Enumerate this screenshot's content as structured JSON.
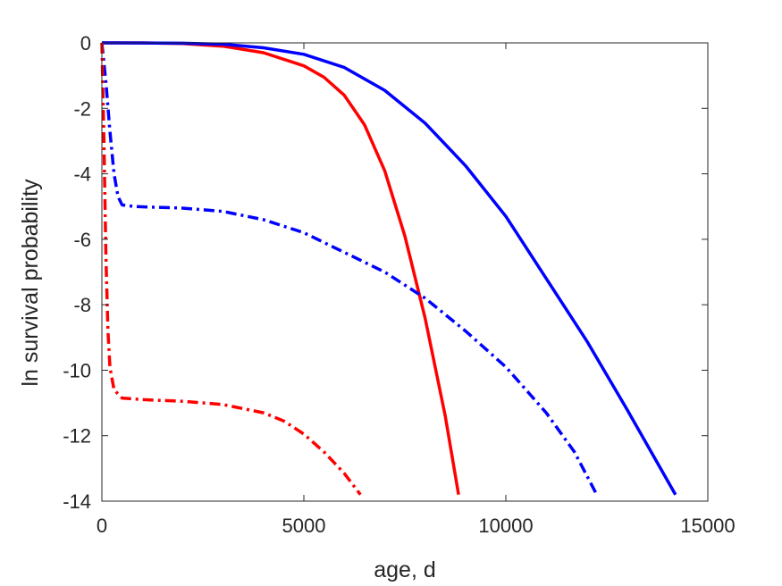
{
  "chart_data": {
    "type": "line",
    "title": "",
    "xlabel": "age, d",
    "ylabel": "ln survival probability",
    "xlim": [
      0,
      15000
    ],
    "ylim": [
      -14,
      0
    ],
    "xticks": [
      0,
      5000,
      10000,
      15000
    ],
    "xtick_labels": [
      "0",
      "5000",
      "10000",
      "15000"
    ],
    "yticks": [
      0,
      -2,
      -4,
      -6,
      -8,
      -10,
      -12,
      -14
    ],
    "ytick_labels": [
      "0",
      "-2",
      "-4",
      "-6",
      "-8",
      "-10",
      "-12",
      "-14"
    ],
    "grid": false,
    "legend": "none",
    "series": [
      {
        "color": "#ff0000",
        "style": "solid",
        "points": [
          [
            0,
            0
          ],
          [
            1000,
            0
          ],
          [
            2000,
            -0.02
          ],
          [
            3000,
            -0.1
          ],
          [
            4000,
            -0.3
          ],
          [
            5000,
            -0.7
          ],
          [
            5500,
            -1.05
          ],
          [
            6000,
            -1.6
          ],
          [
            6500,
            -2.5
          ],
          [
            7000,
            -3.9
          ],
          [
            7500,
            -5.9
          ],
          [
            8000,
            -8.4
          ],
          [
            8500,
            -11.4
          ],
          [
            8830,
            -13.8
          ]
        ]
      },
      {
        "color": "#0000ff",
        "style": "solid",
        "points": [
          [
            0,
            0
          ],
          [
            2000,
            -0.01
          ],
          [
            3000,
            -0.04
          ],
          [
            4000,
            -0.15
          ],
          [
            5000,
            -0.35
          ],
          [
            6000,
            -0.75
          ],
          [
            7000,
            -1.45
          ],
          [
            8000,
            -2.45
          ],
          [
            9000,
            -3.75
          ],
          [
            10000,
            -5.3
          ],
          [
            11000,
            -7.2
          ],
          [
            12000,
            -9.1
          ],
          [
            13000,
            -11.2
          ],
          [
            14200,
            -13.8
          ]
        ]
      },
      {
        "color": "#0000ff",
        "style": "dashdot",
        "points": [
          [
            0,
            0
          ],
          [
            100,
            -1.2
          ],
          [
            200,
            -2.7
          ],
          [
            300,
            -4.0
          ],
          [
            400,
            -4.7
          ],
          [
            500,
            -4.95
          ],
          [
            800,
            -5.0
          ],
          [
            2000,
            -5.05
          ],
          [
            3000,
            -5.15
          ],
          [
            4000,
            -5.4
          ],
          [
            5000,
            -5.8
          ],
          [
            6000,
            -6.4
          ],
          [
            7000,
            -7.0
          ],
          [
            8000,
            -7.8
          ],
          [
            9000,
            -8.8
          ],
          [
            10000,
            -9.9
          ],
          [
            11000,
            -11.3
          ],
          [
            11700,
            -12.5
          ],
          [
            12250,
            -13.8
          ]
        ]
      },
      {
        "color": "#ff0000",
        "style": "dashdot",
        "points": [
          [
            0,
            0
          ],
          [
            50,
            -3.0
          ],
          [
            100,
            -6.5
          ],
          [
            150,
            -8.8
          ],
          [
            200,
            -9.9
          ],
          [
            300,
            -10.6
          ],
          [
            500,
            -10.85
          ],
          [
            1000,
            -10.9
          ],
          [
            2000,
            -10.95
          ],
          [
            3000,
            -11.05
          ],
          [
            4000,
            -11.3
          ],
          [
            4500,
            -11.55
          ],
          [
            5000,
            -11.95
          ],
          [
            5500,
            -12.5
          ],
          [
            6000,
            -13.15
          ],
          [
            6400,
            -13.8
          ]
        ]
      }
    ]
  }
}
